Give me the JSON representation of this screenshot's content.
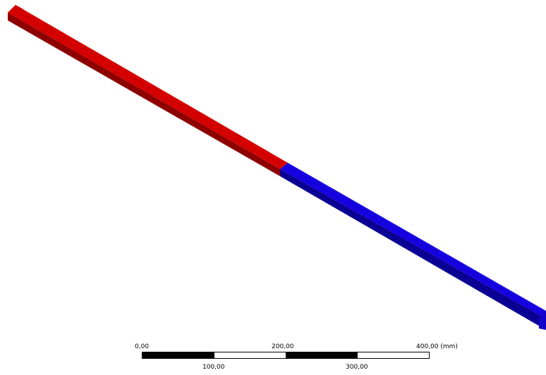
{
  "model": {
    "part_a_colors": {
      "top": "#d40000",
      "side": "#8e0000",
      "end": "#c00000"
    },
    "part_b_colors": {
      "top": "#1500e0",
      "side": "#0a0094",
      "end": "#1000c8"
    }
  },
  "scale": {
    "label_0": "0,00",
    "label_100": "100,00",
    "label_200": "200,00",
    "label_300": "300,00",
    "label_400": "400,00 (mm)",
    "segment_colors": [
      "#000000",
      "#ffffff",
      "#000000",
      "#ffffff"
    ]
  }
}
